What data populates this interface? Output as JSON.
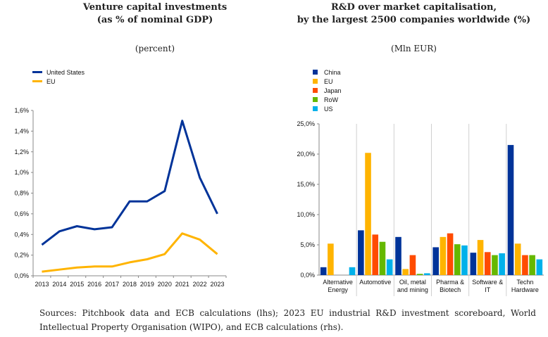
{
  "left_chart": {
    "title_line1": "Venture capital investments",
    "title_line2": "(as % of nominal GDP)",
    "unit": "(percent)"
  },
  "right_chart": {
    "title_line1": "R&D over market capitalisation,",
    "title_line2": "by the largest 2500 companies worldwide (%)",
    "unit": "(Mln EUR)"
  },
  "footnote": "Sources: Pitchbook data and ECB calculations (lhs); 2023 EU industrial R&D investment scoreboard, World Intellectual Property Organisation (WIPO), and ECB calculations (rhs).",
  "chart_data": [
    {
      "type": "line",
      "title": "Venture capital investments (as % of nominal GDP)",
      "subtitle": "(percent)",
      "x": [
        "2013",
        "2014",
        "2015",
        "2016",
        "2017",
        "2018",
        "2019",
        "2020",
        "2021",
        "2022",
        "2023"
      ],
      "series": [
        {
          "name": "United States",
          "color": "#003399",
          "values": [
            0.3,
            0.43,
            0.48,
            0.45,
            0.47,
            0.72,
            0.72,
            0.82,
            1.5,
            0.95,
            0.6
          ]
        },
        {
          "name": "EU",
          "color": "#ffb400",
          "values": [
            0.04,
            0.06,
            0.08,
            0.09,
            0.09,
            0.13,
            0.16,
            0.21,
            0.41,
            0.35,
            0.21
          ]
        }
      ],
      "ylim": [
        0,
        1.6
      ],
      "yticks": [
        "0,0%",
        "0,2%",
        "0,4%",
        "0,6%",
        "0,8%",
        "1,0%",
        "1,2%",
        "1,4%",
        "1,6%"
      ],
      "grid": false,
      "legend": "top-left"
    },
    {
      "type": "bar",
      "title": "R&D over market capitalisation, by the largest 2500 companies worldwide (%)",
      "subtitle": "(Mln EUR)",
      "categories": [
        [
          "Alternative",
          "Energy"
        ],
        [
          "Automotive"
        ],
        [
          "Oil, metal",
          "and mining"
        ],
        [
          "Pharma &",
          "Biotech"
        ],
        [
          "Software &",
          "IT"
        ],
        [
          "Techn",
          "Hardware"
        ]
      ],
      "series": [
        {
          "name": "China",
          "color": "#003399",
          "values": [
            1.3,
            7.4,
            6.3,
            4.6,
            3.7,
            21.5
          ]
        },
        {
          "name": "EU",
          "color": "#ffb400",
          "values": [
            5.2,
            20.2,
            1.0,
            6.3,
            5.8,
            5.2
          ]
        },
        {
          "name": "Japan",
          "color": "#ff4b00",
          "values": [
            0.0,
            6.7,
            3.3,
            6.9,
            3.8,
            3.3
          ]
        },
        {
          "name": "RoW",
          "color": "#65b800",
          "values": [
            0.0,
            5.5,
            0.2,
            5.1,
            3.3,
            3.3
          ]
        },
        {
          "name": "US",
          "color": "#00b1ea",
          "values": [
            1.3,
            2.6,
            0.3,
            4.9,
            3.6,
            2.6
          ]
        }
      ],
      "ylim": [
        0,
        25
      ],
      "yticks": [
        "0,0%",
        "5,0%",
        "10,0%",
        "15,0%",
        "20,0%",
        "25,0%"
      ],
      "grid": false,
      "legend": "top-left"
    }
  ]
}
